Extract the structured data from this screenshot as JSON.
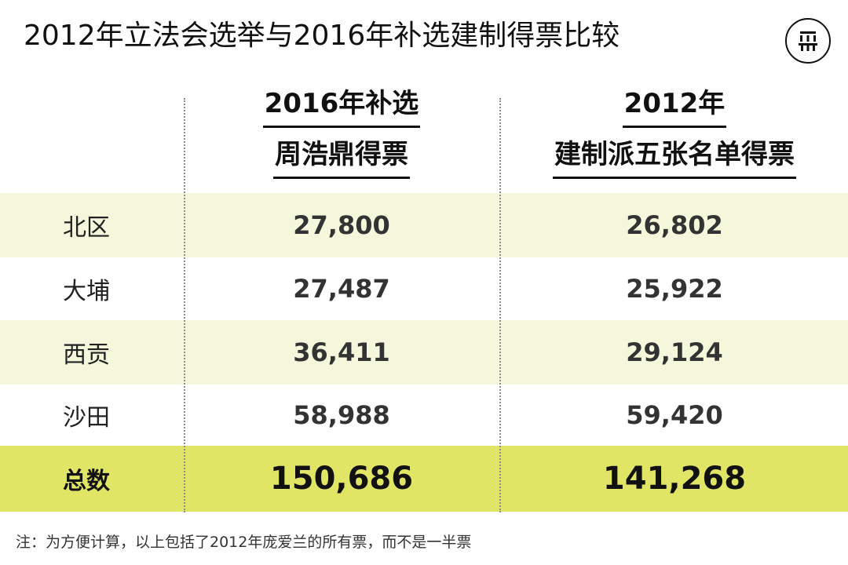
{
  "title": "2012年立法会选举与2016年补选建制得票比较",
  "logo": {
    "icon": "theinitium-logo-icon",
    "text": "端"
  },
  "columns": [
    {
      "line1": "2016年补选",
      "line2": "周浩鼎得票"
    },
    {
      "line1": "2012年",
      "line2": "建制派五张名单得票"
    }
  ],
  "rows": [
    {
      "label": "北区",
      "v2016": "27,800",
      "v2012": "26,802"
    },
    {
      "label": "大埔",
      "v2016": "27,487",
      "v2012": "25,922"
    },
    {
      "label": "西贡",
      "v2016": "36,411",
      "v2012": "29,124"
    },
    {
      "label": "沙田",
      "v2016": "58,988",
      "v2012": "59,420"
    }
  ],
  "total": {
    "label": "总数",
    "v2016": "150,686",
    "v2012": "141,268"
  },
  "note": "注：为方便计算，以上包括了2012年庞爱兰的所有票，而不是一半票",
  "colors": {
    "shaded_row": "#f5f7dc",
    "total_row": "#e0e566",
    "divider": "#8a8a8a"
  },
  "chart_data": {
    "type": "table",
    "title": "2012年立法会选举与2016年补选建制得票比较",
    "columns": [
      "2016年补选 周浩鼎得票",
      "2012年 建制派五张名单得票"
    ],
    "categories": [
      "北区",
      "大埔",
      "西贡",
      "沙田",
      "总数"
    ],
    "series": [
      {
        "name": "2016年补选 周浩鼎得票",
        "values": [
          27800,
          27487,
          36411,
          58988,
          150686
        ]
      },
      {
        "name": "2012年 建制派五张名单得票",
        "values": [
          26802,
          25922,
          29124,
          59420,
          141268
        ]
      }
    ]
  }
}
